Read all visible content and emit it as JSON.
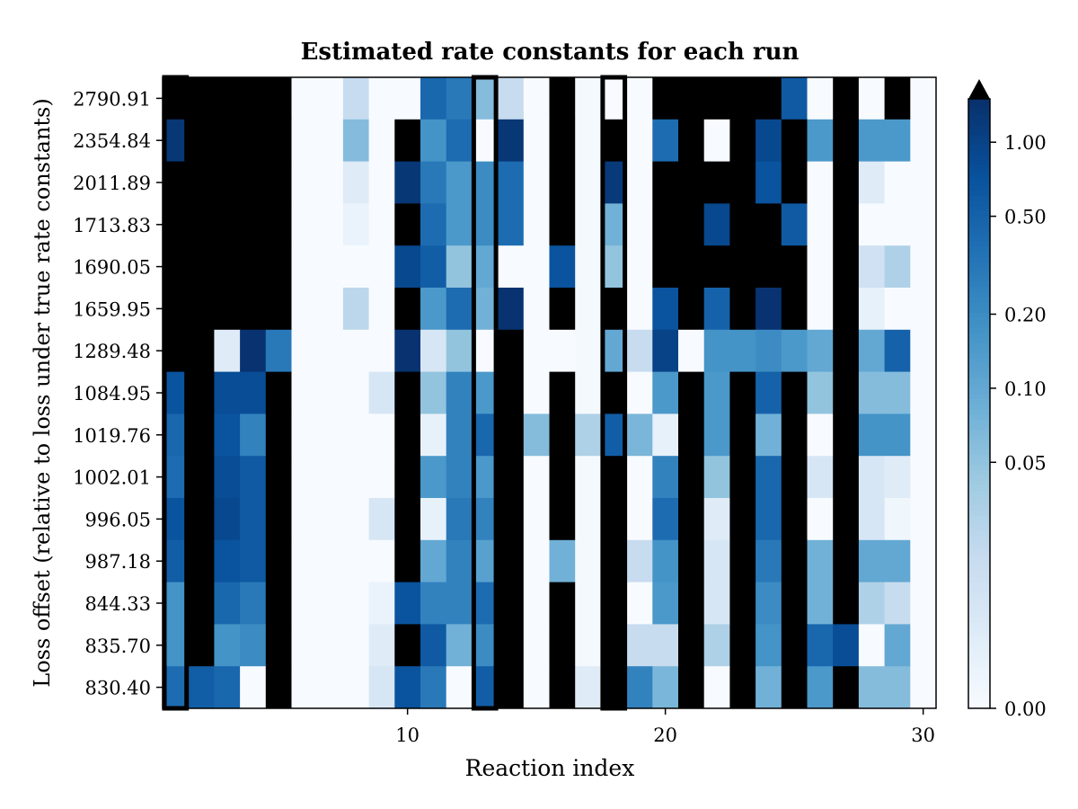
{
  "chart_data": {
    "type": "heatmap",
    "title": "Estimated rate constants for each run",
    "xlabel": "Reaction index",
    "ylabel": "Loss offset (relative to loss under true rate constants)",
    "x_ticks": [
      10,
      20,
      30
    ],
    "x_range": [
      1,
      30
    ],
    "rows": [
      "2790.91",
      "2354.84",
      "2011.89",
      "1713.83",
      "1690.05",
      "1659.95",
      "1289.48",
      "1084.95",
      "1019.76",
      "1002.01",
      "996.05",
      "987.18",
      "844.33",
      "835.70",
      "830.40"
    ],
    "highlighted_columns": [
      1,
      13,
      18
    ],
    "colorbar": {
      "colormap": "Blues",
      "over_color": "#000000",
      "extend": "max",
      "scale": "symlog",
      "ticks": [
        0.0,
        0.05,
        0.1,
        0.2,
        0.5,
        1.0
      ],
      "tick_labels": [
        "0.00",
        "0.05",
        "0.10",
        "0.20",
        "0.50",
        "1.00"
      ],
      "range": [
        0,
        1.5
      ]
    },
    "values": [
      [
        -1,
        -1,
        -1,
        -1,
        -1,
        0,
        0,
        0.03,
        0,
        0,
        0.45,
        0.3,
        0.06,
        0.03,
        0,
        -1,
        0.002,
        0,
        0,
        -1,
        -1,
        -1,
        -1,
        -1,
        0.6,
        0,
        -1,
        0,
        -1,
        0
      ],
      [
        1.3,
        -1,
        -1,
        -1,
        -1,
        0,
        0,
        0.06,
        0,
        -1,
        0.17,
        0.4,
        0,
        1.3,
        0,
        -1,
        0.002,
        -1,
        0,
        0.4,
        -1,
        0,
        -1,
        0.9,
        -1,
        0.15,
        -1,
        0.15,
        0.15,
        0
      ],
      [
        -1,
        -1,
        -1,
        -1,
        -1,
        0,
        0,
        0.015,
        0,
        1.3,
        0.3,
        0.15,
        0.2,
        0.4,
        0,
        -1,
        0.002,
        1.2,
        0,
        -1,
        -1,
        -1,
        -1,
        0.7,
        -1,
        0,
        -1,
        0.015,
        0,
        0
      ],
      [
        -1,
        -1,
        -1,
        -1,
        -1,
        0,
        0,
        0.008,
        0,
        -1,
        0.4,
        0.15,
        0.2,
        0.4,
        0,
        -1,
        0.002,
        0.08,
        0,
        -1,
        -1,
        0.9,
        -1,
        -1,
        0.6,
        0,
        -1,
        0,
        0,
        0
      ],
      [
        -1,
        -1,
        -1,
        -1,
        -1,
        0,
        0,
        0,
        0,
        0.9,
        0.55,
        0.05,
        0.1,
        0,
        0,
        0.7,
        0.002,
        0.05,
        0,
        -1,
        -1,
        -1,
        -1,
        -1,
        -1,
        0,
        -1,
        0.025,
        0.04,
        0
      ],
      [
        -1,
        -1,
        -1,
        -1,
        -1,
        0,
        0,
        0.035,
        0,
        -1,
        0.15,
        0.4,
        0.08,
        1.4,
        0,
        -1,
        0.002,
        -1,
        0,
        0.7,
        -1,
        0.5,
        -1,
        1.4,
        -1,
        0,
        -1,
        0.01,
        0,
        0
      ],
      [
        -1,
        -1,
        0.015,
        1.4,
        0.3,
        0,
        0,
        0,
        0,
        1.4,
        0.02,
        0.05,
        0,
        -1,
        0,
        0,
        0.002,
        0.1,
        0.03,
        1.0,
        0,
        0.17,
        0.17,
        0.2,
        0.15,
        0.1,
        -1,
        0.1,
        0.5,
        0
      ],
      [
        0.7,
        -1,
        0.8,
        0.8,
        -1,
        0,
        0,
        0,
        0.02,
        -1,
        0.05,
        0.25,
        0.15,
        -1,
        0,
        -1,
        0.002,
        -1,
        0,
        0.15,
        -1,
        0.15,
        -1,
        0.5,
        -1,
        0.05,
        -1,
        0.06,
        0.06,
        0
      ],
      [
        0.45,
        -1,
        0.7,
        0.25,
        -1,
        0,
        0,
        0,
        0,
        -1,
        0.01,
        0.25,
        0.45,
        -1,
        0.06,
        -1,
        0.04,
        0.55,
        0.07,
        0.01,
        -1,
        0.15,
        -1,
        0.08,
        -1,
        0,
        -1,
        0.17,
        0.17,
        0
      ],
      [
        0.4,
        -1,
        0.8,
        0.6,
        -1,
        0,
        0,
        0,
        0,
        -1,
        0.15,
        0.25,
        0.15,
        -1,
        0,
        -1,
        0.002,
        -1,
        0,
        0.25,
        -1,
        0.05,
        -1,
        0.45,
        -1,
        0.02,
        -1,
        0.02,
        0.015,
        0
      ],
      [
        0.7,
        -1,
        0.9,
        0.6,
        -1,
        0,
        0,
        0,
        0.02,
        -1,
        0.01,
        0.3,
        0.25,
        -1,
        0,
        -1,
        0.002,
        -1,
        0,
        0.4,
        -1,
        0.015,
        -1,
        0.45,
        -1,
        0,
        -1,
        0.02,
        0.005,
        0
      ],
      [
        0.55,
        -1,
        0.7,
        0.6,
        -1,
        0,
        0,
        0,
        0,
        -1,
        0.1,
        0.25,
        0.12,
        -1,
        0,
        0.08,
        0.002,
        -1,
        0.03,
        0.17,
        -1,
        0.02,
        -1,
        0.3,
        -1,
        0.08,
        -1,
        0.1,
        0.1,
        0
      ],
      [
        0.17,
        -1,
        0.45,
        0.3,
        -1,
        0,
        0,
        0,
        0.008,
        0.7,
        0.25,
        0.25,
        0.4,
        -1,
        0,
        -1,
        0.002,
        -1,
        0,
        0.15,
        -1,
        0.02,
        -1,
        0.2,
        -1,
        0.08,
        -1,
        0.04,
        0.03,
        0
      ],
      [
        0.17,
        -1,
        0.17,
        0.2,
        -1,
        0,
        0,
        0,
        0.015,
        -1,
        0.6,
        0.08,
        0.2,
        -1,
        0,
        -1,
        0.002,
        -1,
        0.03,
        0.03,
        -1,
        0.04,
        -1,
        0.17,
        -1,
        0.45,
        0.8,
        0,
        0.1,
        0
      ],
      [
        0.4,
        0.55,
        0.45,
        0,
        -1,
        0,
        0,
        0,
        0.02,
        0.7,
        0.3,
        0,
        0.55,
        -1,
        0,
        -1,
        0.015,
        -1,
        0.25,
        0.07,
        -1,
        0,
        -1,
        0.08,
        -1,
        0.15,
        -1,
        0.06,
        0.06,
        0
      ]
    ]
  }
}
